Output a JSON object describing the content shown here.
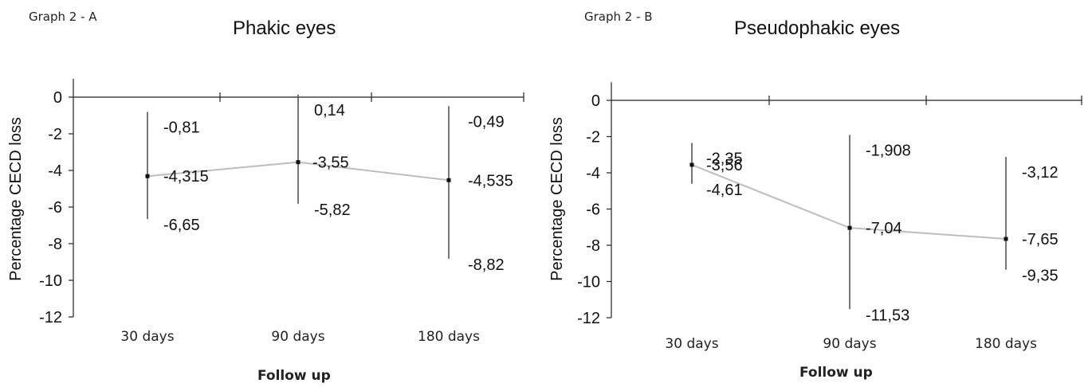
{
  "chart_data": [
    {
      "type": "line",
      "panel_label": "Graph 2 - A",
      "title": "Phakic eyes",
      "xlabel": "Follow up",
      "ylabel": "Percentage CECD loss",
      "categories": [
        "30 days",
        "90 days",
        "180 days"
      ],
      "yticks": [
        "0",
        "-2",
        "-4",
        "-6",
        "-8",
        "-10",
        "-12"
      ],
      "ylim": [
        -12,
        1
      ],
      "series": [
        {
          "values": [
            -4.315,
            -3.55,
            -4.535
          ],
          "upper": [
            -0.81,
            0.14,
            -0.49
          ],
          "lower": [
            -6.65,
            -5.82,
            -8.82
          ]
        }
      ],
      "labels": {
        "mean": [
          "-4,315",
          "-3,55",
          "-4,535"
        ],
        "upper": [
          "-0,81",
          "0,14",
          "-0,49"
        ],
        "lower": [
          "-6,65",
          "-5,82",
          "-8,82"
        ]
      },
      "grid": false
    },
    {
      "type": "line",
      "panel_label": "Graph 2 - B",
      "title": "Pseudophakic eyes",
      "xlabel": "Follow up",
      "ylabel": "Percentage CECD loss",
      "categories": [
        "30 days",
        "90 days",
        "180 days"
      ],
      "yticks": [
        "0",
        "-2",
        "-4",
        "-6",
        "-8",
        "-10",
        "-12"
      ],
      "ylim": [
        -12,
        1
      ],
      "series": [
        {
          "values": [
            -3.56,
            -7.04,
            -7.65
          ],
          "upper": [
            -2.35,
            -1.908,
            -3.12
          ],
          "lower": [
            -4.61,
            -11.53,
            -9.35
          ]
        }
      ],
      "labels": {
        "mean": [
          "-3,56",
          "-7,04",
          "-7,65"
        ],
        "upper": [
          "-2,35",
          "-1,908",
          "-3,12"
        ],
        "lower": [
          "-4,61",
          "-11,53",
          "-9,35"
        ]
      },
      "grid": false
    }
  ]
}
